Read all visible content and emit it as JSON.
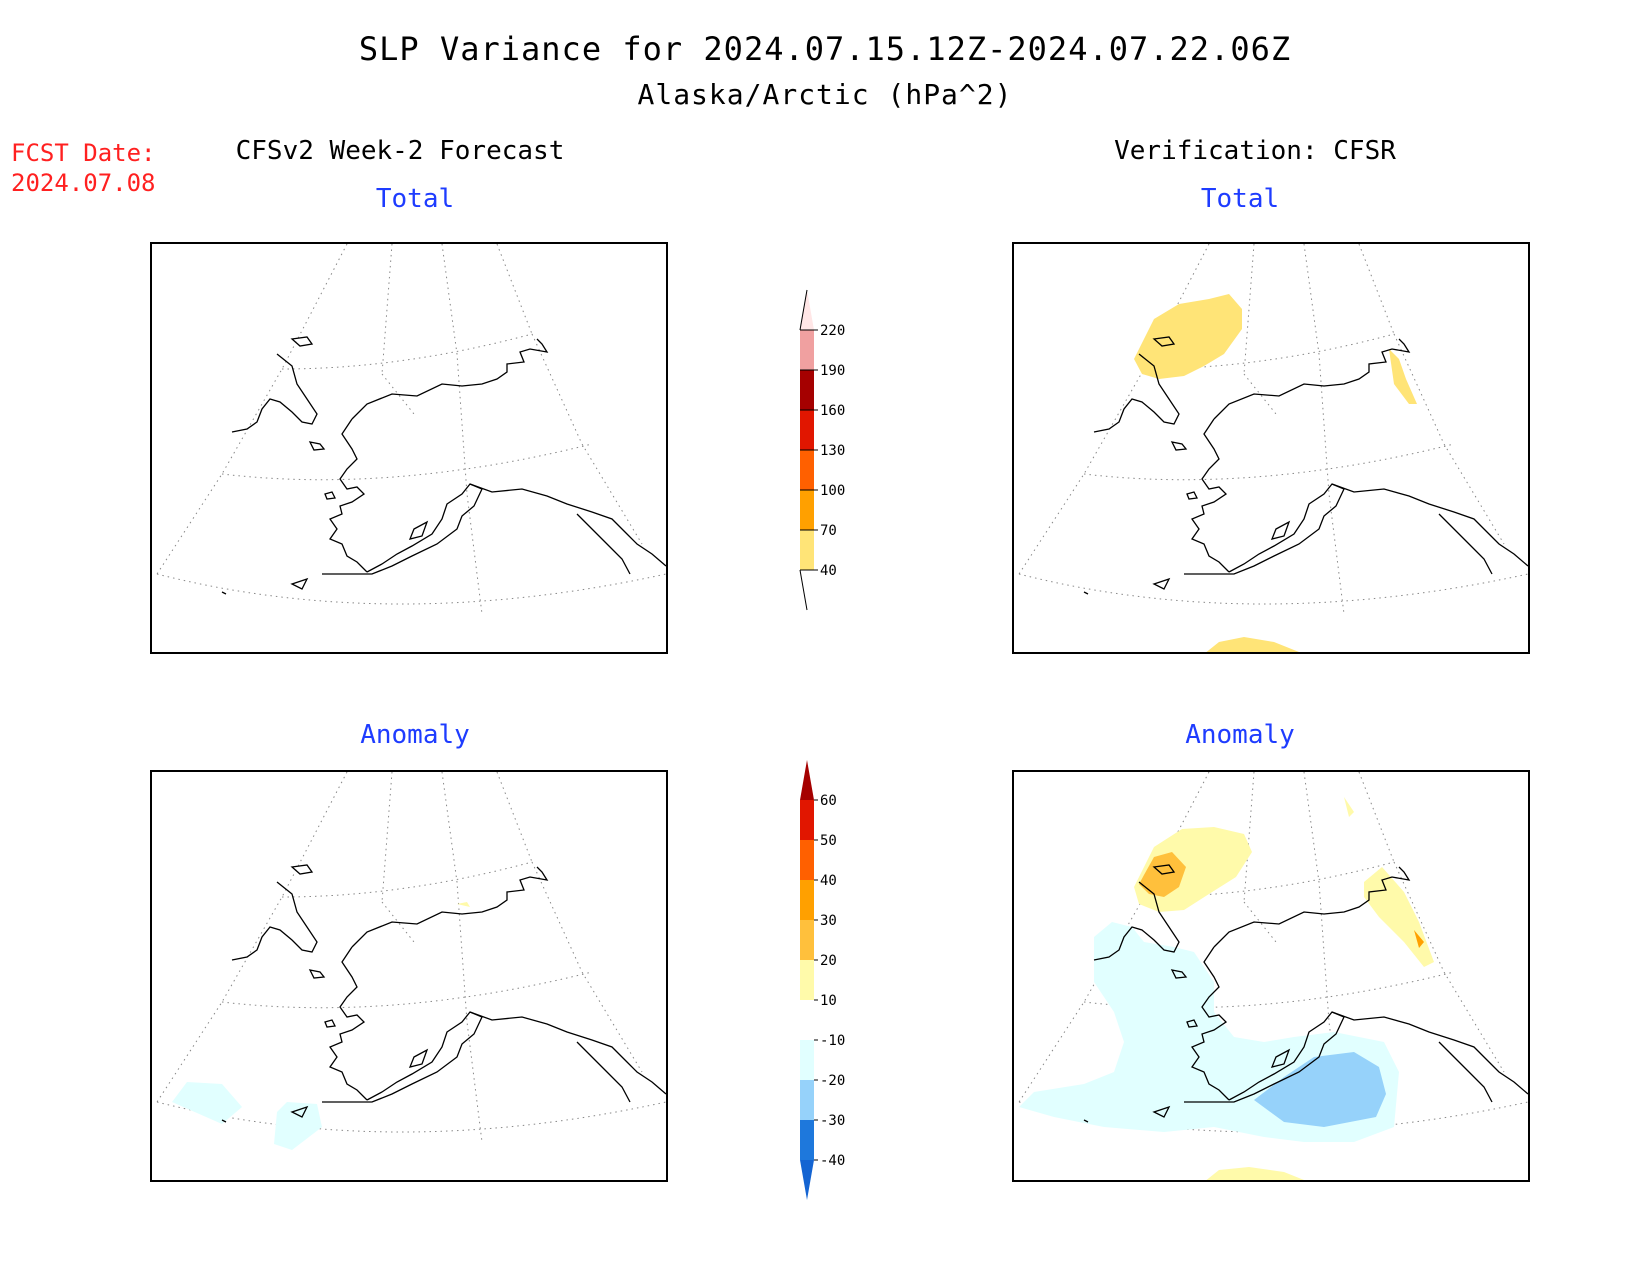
{
  "title": {
    "line1": "SLP Variance for 2024.07.15.12Z-2024.07.22.06Z",
    "line2": "Alaska/Arctic (hPa^2)"
  },
  "forecast_date": {
    "label": "FCST Date:",
    "value": "2024.07.08"
  },
  "columns": [
    {
      "heading": "CFSv2 Week-2 Forecast"
    },
    {
      "heading": "Verification: CFSR"
    }
  ],
  "panels": [
    {
      "id": "fcst-total",
      "subtitle": "Total",
      "shaded": []
    },
    {
      "id": "verif-total",
      "subtitle": "Total",
      "shaded": [
        "40-70 over northern Siberia",
        "40-70 near Canadian Arctic",
        "40-70 south edge Pacific"
      ]
    },
    {
      "id": "fcst-anomaly",
      "subtitle": "Anomaly",
      "shaded": [
        "-20 to -10 western Aleutians"
      ]
    },
    {
      "id": "verif-anomaly",
      "subtitle": "Anomaly",
      "shaded": [
        "10-30 over northern Siberia",
        "-30 to -10 Gulf of Alaska",
        "-20 to -10 Bering Sea"
      ]
    }
  ],
  "colorbars": {
    "total": {
      "levels": [
        "40",
        "70",
        "100",
        "130",
        "160",
        "190",
        "220"
      ],
      "colors": [
        "#ffe477",
        "#ffa000",
        "#ff6000",
        "#e11600",
        "#a50000",
        "#f0a0a0",
        "#ffe6e6"
      ]
    },
    "anomaly": {
      "levels": [
        "-40",
        "-30",
        "-20",
        "-10",
        "10",
        "20",
        "30",
        "40",
        "50",
        "60"
      ],
      "colors": [
        "#1464d2",
        "#1e78dc",
        "#96d2fa",
        "#e1ffff",
        "#ffffff",
        "#fffaaa",
        "#ffc03c",
        "#ffa000",
        "#ff6000",
        "#e11600",
        "#a50000"
      ]
    }
  }
}
